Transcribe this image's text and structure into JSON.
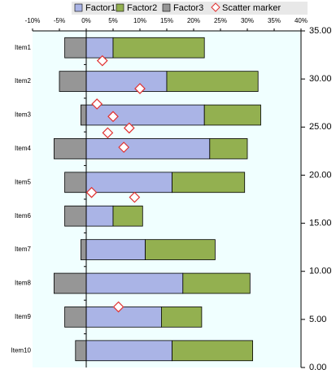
{
  "chart_data": {
    "type": "bar",
    "orientation": "horizontal",
    "stacked": true,
    "categories": [
      "Item1",
      "Item2",
      "Item3",
      "Item4",
      "Item5",
      "Item6",
      "Item7",
      "Item8",
      "Item9",
      "Item10"
    ],
    "series": [
      {
        "name": "Factor1",
        "color": "#aab4e6",
        "values": [
          5,
          15,
          22,
          23,
          16,
          5,
          11,
          18,
          14,
          16
        ]
      },
      {
        "name": "Factor2",
        "color": "#93b050",
        "values": [
          17,
          17,
          10.5,
          7,
          13.5,
          5.5,
          13,
          12.5,
          7.5,
          15
        ]
      },
      {
        "name": "Factor3",
        "color": "#969696",
        "values": [
          -4,
          -5,
          -1,
          -6,
          -4,
          -4,
          -1,
          -6,
          -4,
          -2
        ]
      },
      {
        "name": "Scatter marker",
        "type": "scatter",
        "axis": "y2",
        "color": "#e03030",
        "x": [
          3,
          10,
          2,
          5,
          8,
          4,
          7,
          1,
          9,
          6
        ],
        "values": [
          31.9,
          29.0,
          27.4,
          26.1,
          24.9,
          24.4,
          22.9,
          18.2,
          17.7,
          6.3
        ]
      }
    ],
    "xlim": [
      -10,
      40
    ],
    "xticks": [
      {
        "value": -10,
        "label": "-10%"
      },
      {
        "value": -5,
        "label": "-5%"
      },
      {
        "value": 0,
        "label": "0%"
      },
      {
        "value": 5,
        "label": "5%"
      },
      {
        "value": 10,
        "label": "10%"
      },
      {
        "value": 15,
        "label": "15%"
      },
      {
        "value": 20,
        "label": "20%"
      },
      {
        "value": 25,
        "label": "25%"
      },
      {
        "value": 30,
        "label": "30%"
      },
      {
        "value": 35,
        "label": "35%"
      },
      {
        "value": 40,
        "label": "40%"
      }
    ],
    "y2lim": [
      0,
      35
    ],
    "y2ticks": [
      {
        "value": 0,
        "label": "0.00"
      },
      {
        "value": 5,
        "label": "5.00"
      },
      {
        "value": 10,
        "label": "10.00"
      },
      {
        "value": 15,
        "label": "15.00"
      },
      {
        "value": 20,
        "label": "20.00"
      },
      {
        "value": 25,
        "label": "25.00"
      },
      {
        "value": 30,
        "label": "30.00"
      },
      {
        "value": 35,
        "label": "35.00"
      }
    ],
    "legend": "top",
    "plot_background": "#f0ffff"
  }
}
